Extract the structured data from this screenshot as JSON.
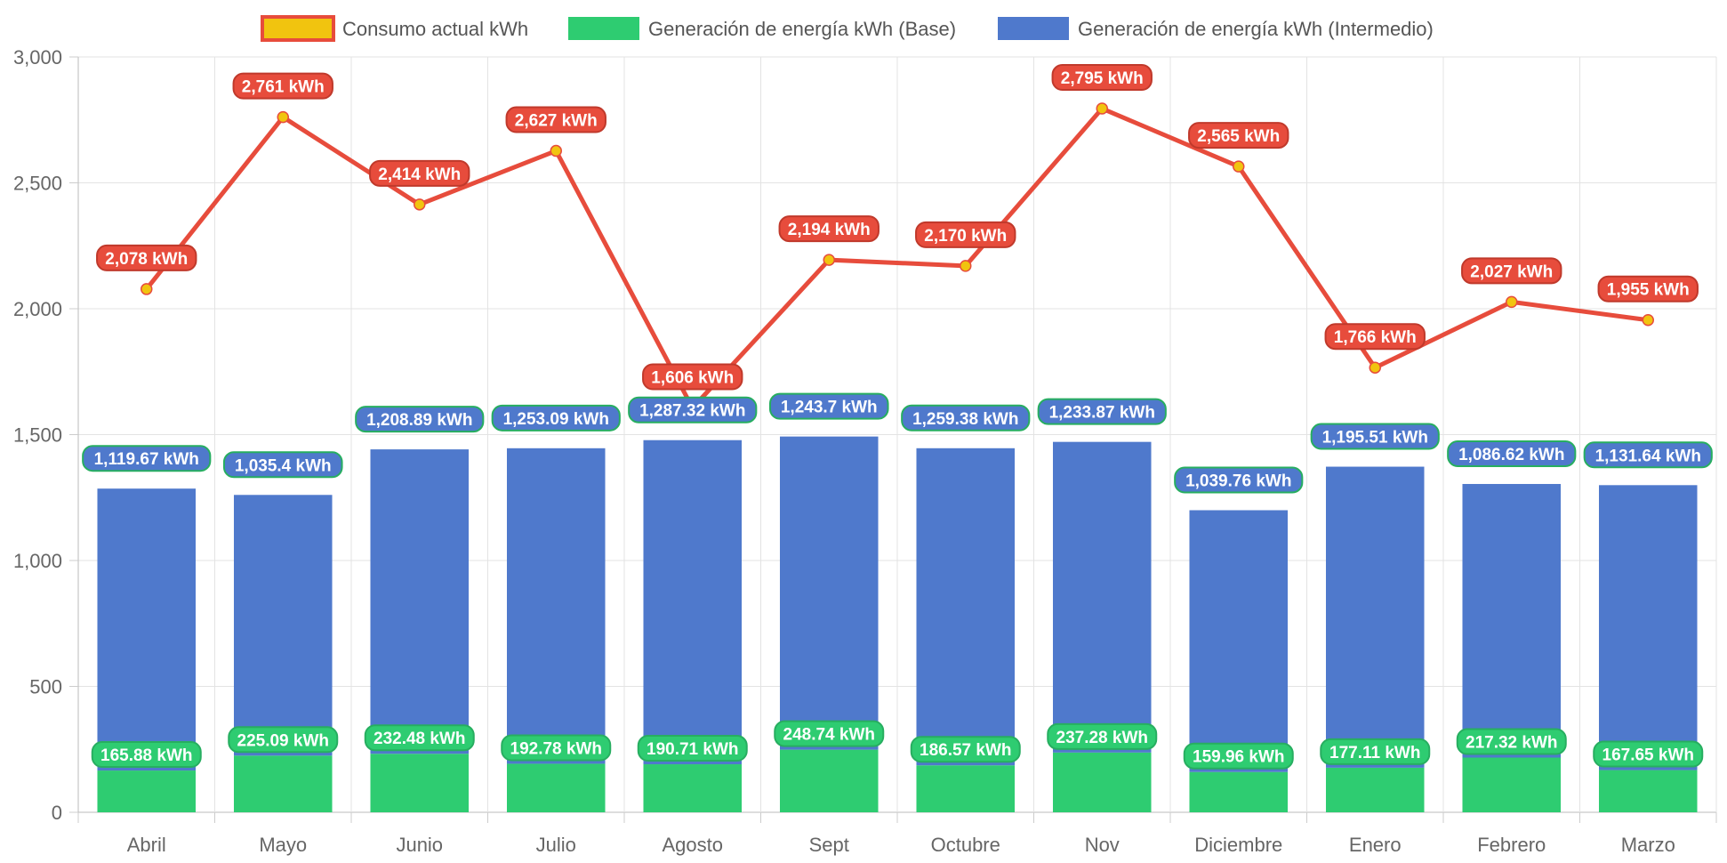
{
  "chart_data": {
    "type": "bar",
    "title": "",
    "xlabel": "",
    "ylabel": "",
    "ylim": [
      0,
      3000
    ],
    "yticks": [
      0,
      500,
      1000,
      1500,
      2000,
      2500,
      3000
    ],
    "ytick_labels": [
      "0",
      "500",
      "1,000",
      "1,500",
      "2,000",
      "2,500",
      "3,000"
    ],
    "stacked": true,
    "grid": true,
    "legend_position": "top",
    "unit_suffix": " kWh",
    "categories": [
      "Abril",
      "Mayo",
      "Junio",
      "Julio",
      "Agosto",
      "Sept",
      "Octubre",
      "Nov",
      "Diciembre",
      "Enero",
      "Febrero",
      "Marzo"
    ],
    "series": [
      {
        "name": "Consumo actual kWh",
        "type": "line",
        "color": "#e74c3c",
        "point_color": "#f1c40f",
        "values": [
          2078,
          2761,
          2414,
          2627,
          1606,
          2194,
          2170,
          2795,
          2565,
          1766,
          2027,
          1955
        ],
        "labels": [
          "2,078 kWh",
          "2,761 kWh",
          "2,414 kWh",
          "2,627 kWh",
          "1,606 kWh",
          "2,194 kWh",
          "2,170 kWh",
          "2,795 kWh",
          "2,565 kWh",
          "1,766 kWh",
          "2,027 kWh",
          "1,955 kWh"
        ]
      },
      {
        "name": "Generación de energía kWh (Base)",
        "type": "bar",
        "color": "#2ecc71",
        "values": [
          165.88,
          225.09,
          232.48,
          192.78,
          190.71,
          248.74,
          186.57,
          237.28,
          159.96,
          177.11,
          217.32,
          167.65
        ],
        "labels": [
          "165.88 kWh",
          "225.09 kWh",
          "232.48 kWh",
          "192.78 kWh",
          "190.71 kWh",
          "248.74 kWh",
          "186.57 kWh",
          "237.28 kWh",
          "159.96 kWh",
          "177.11 kWh",
          "217.32 kWh",
          "167.65 kWh"
        ]
      },
      {
        "name": "Generación de energía kWh (Intermedio)",
        "type": "bar",
        "color": "#4f79cc",
        "values": [
          1119.67,
          1035.4,
          1208.89,
          1253.09,
          1287.32,
          1243.7,
          1259.38,
          1233.87,
          1039.76,
          1195.51,
          1086.62,
          1131.64
        ],
        "labels": [
          "1,119.67 kWh",
          "1,035.4 kWh",
          "1,208.89 kWh",
          "1,253.09 kWh",
          "1,287.32 kWh",
          "1,243.7 kWh",
          "1,259.38 kWh",
          "1,233.87 kWh",
          "1,039.76 kWh",
          "1,195.51 kWh",
          "1,086.62 kWh",
          "1,131.64 kWh"
        ]
      }
    ]
  }
}
